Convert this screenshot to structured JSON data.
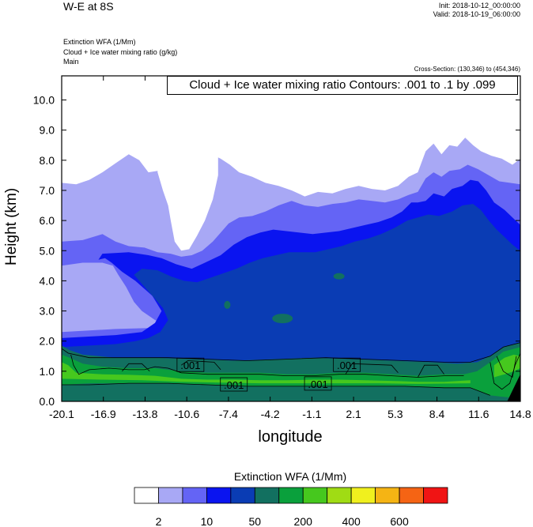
{
  "header": {
    "title": "W-E at 8S",
    "init": "Init: 2018-10-12_00:00:00",
    "valid": "Valid: 2018-10-19_06:00:00",
    "subtitle_lines": [
      "Extinction WFA   (1/Mm)",
      "Cloud + Ice water mixing ratio   (g/kg)",
      "Main"
    ],
    "cross_section": "Cross-Section: (130,346) to (454,346)",
    "contour_info": "Cloud + Ice water mixing ratio Contours: .001 to .1 by .099"
  },
  "colors": {
    "levels": [
      "#ffffff",
      "#a8a8f5",
      "#6464f5",
      "#0a14f0",
      "#0a3cb4",
      "#127060",
      "#0aa03c",
      "#46c81e",
      "#a0dc14",
      "#f0f01e",
      "#f5b414",
      "#f56414",
      "#f01414"
    ],
    "contour": "#000000"
  },
  "chart_data": {
    "type": "heatmap",
    "title": "W-E at 8S",
    "xlabel": "longitude",
    "ylabel": "Height (km)",
    "xlim": [
      -20.1,
      14.8
    ],
    "ylim": [
      0.0,
      10.8
    ],
    "x_ticks": [
      "-20.1",
      "-16.9",
      "-13.8",
      "-10.6",
      "-7.4",
      "-4.2",
      "-1.1",
      "2.1",
      "5.3",
      "8.4",
      "11.6",
      "14.8"
    ],
    "y_ticks": [
      "0.0",
      "1.0",
      "2.0",
      "3.0",
      "4.0",
      "5.0",
      "6.0",
      "7.0",
      "8.0",
      "9.0",
      "10.0"
    ],
    "colorbar": {
      "title": "Extinction WFA  (1/Mm)",
      "labels": [
        "2",
        "10",
        "50",
        "200",
        "400",
        "600"
      ]
    },
    "contour_labels": [
      {
        "text": ".001",
        "lon": -10.3,
        "height": 1.2
      },
      {
        "text": ".001",
        "lon": -7.0,
        "height": 0.55
      },
      {
        "text": ".001",
        "lon": -0.6,
        "height": 0.58
      },
      {
        "text": ".001",
        "lon": 1.6,
        "height": 1.2
      }
    ],
    "surface_profile": [
      {
        "lon": -20.1,
        "height": 10.8,
        "level": 0
      },
      {
        "lon": -18.0,
        "height": 7.3,
        "level": 1
      },
      {
        "lon": -15.0,
        "height": 7.5,
        "level": 1
      },
      {
        "lon": -12.0,
        "height": 8.2,
        "level": 1
      },
      {
        "lon": -8.0,
        "height": 8.2,
        "level": 1
      },
      {
        "lon": -4.0,
        "height": 7.2,
        "level": 1
      },
      {
        "lon": 0.0,
        "height": 6.8,
        "level": 1
      },
      {
        "lon": 4.0,
        "height": 7.0,
        "level": 1
      },
      {
        "lon": 8.0,
        "height": 8.0,
        "level": 1
      },
      {
        "lon": 11.0,
        "height": 8.5,
        "level": 1
      },
      {
        "lon": 14.8,
        "height": 8.0,
        "level": 1
      }
    ]
  }
}
